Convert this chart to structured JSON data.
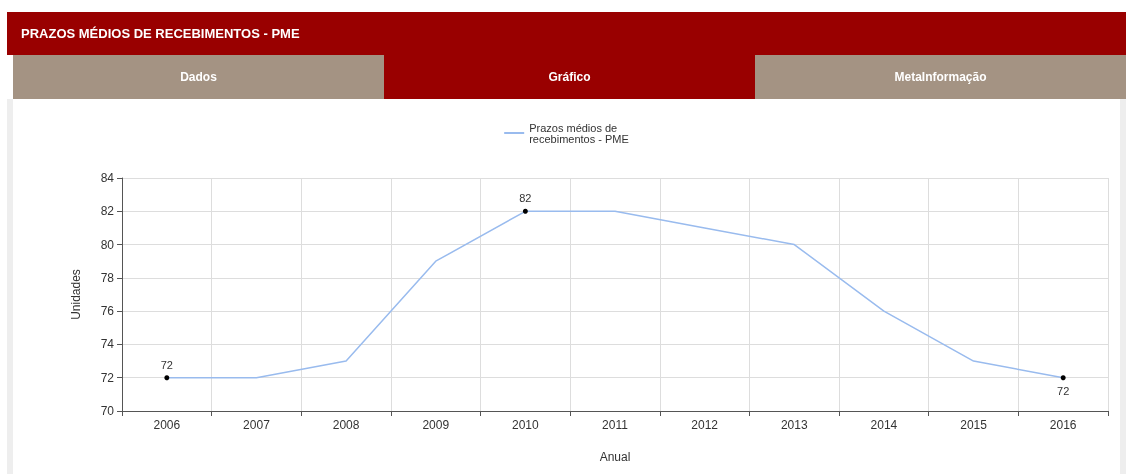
{
  "chart_data": {
    "type": "line",
    "title": "PRAZOS MÉDIOS DE RECEBIMENTOS - PME",
    "annotations": [
      "Dados",
      "Gráfico",
      "MetaInformação"
    ],
    "categories": [
      "2006",
      "2007",
      "2008",
      "2009",
      "2010",
      "2011",
      "2012",
      "2013",
      "2014",
      "2015",
      "2016"
    ],
    "series": [
      {
        "name": "Prazos médios de recebimentos - PME",
        "color": "#99bbee",
        "values": [
          72,
          72,
          73,
          79,
          82,
          82,
          81,
          80,
          76,
          73,
          72
        ],
        "value_labels": [
          "72",
          null,
          null,
          null,
          "82",
          null,
          null,
          null,
          null,
          null,
          "72"
        ]
      }
    ],
    "xlabel": "Anual",
    "ylabel": "Unidades",
    "ylim": [
      70,
      84
    ],
    "yticks": [
      70,
      72,
      74,
      76,
      78,
      80,
      82,
      84
    ],
    "grid": true,
    "legend": "top",
    "line_style": "solid"
  }
}
